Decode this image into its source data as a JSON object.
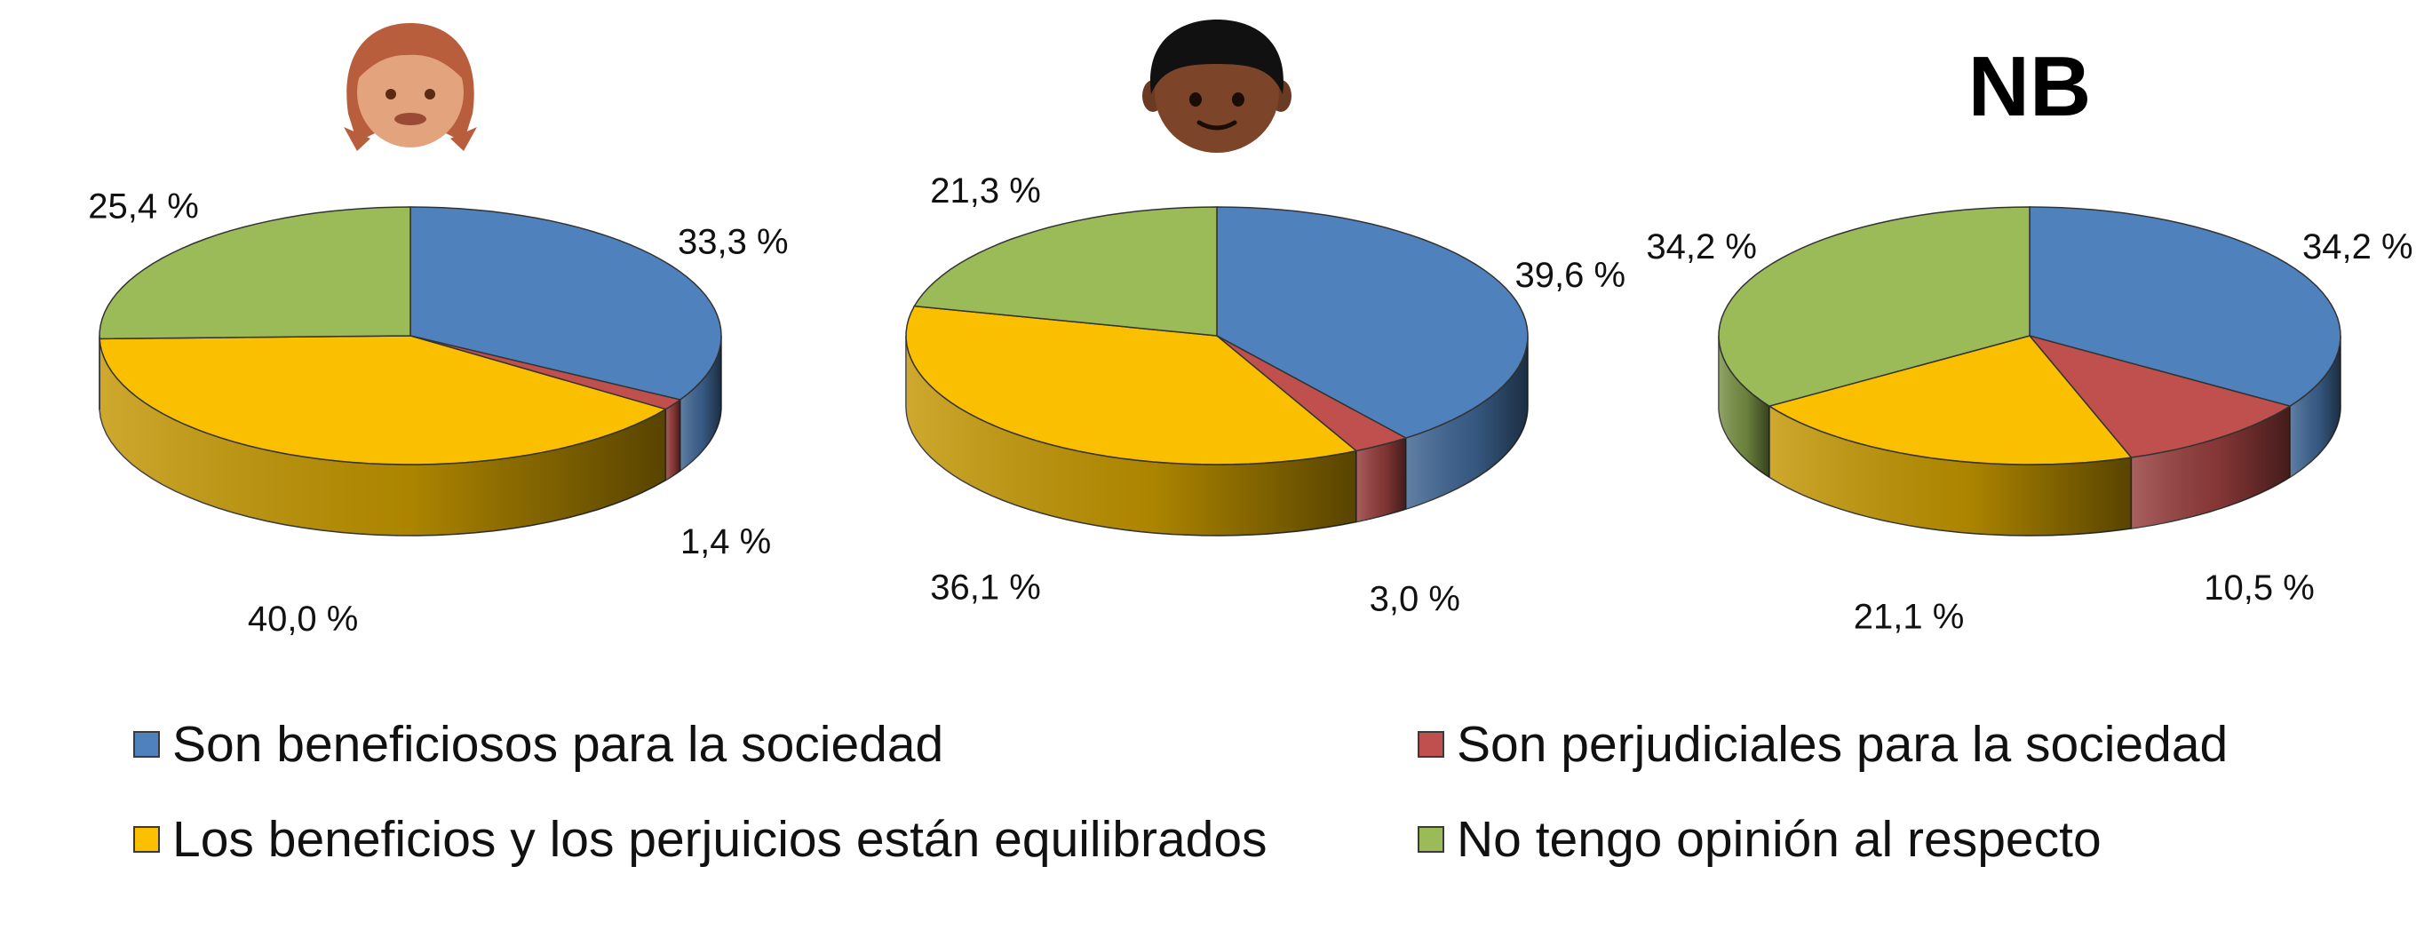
{
  "colors": {
    "beneficial": "#4f81bd",
    "harmful": "#c0504d",
    "balanced": "#fac000",
    "no_opinion": "#9bbb59"
  },
  "chart_data": [
    {
      "type": "pie",
      "header_icon": "girl-face-icon",
      "header_text": "",
      "categories": [
        "Son beneficiosos para la sociedad",
        "Son perjudiciales para la sociedad",
        "Los beneficios y los perjuicios están equilibrados",
        "No tengo opinión al respecto"
      ],
      "values": [
        33.3,
        1.4,
        40.0,
        25.4
      ],
      "labels": [
        "33,3 %",
        "1,4 %",
        "40,0 %",
        "25,4 %"
      ]
    },
    {
      "type": "pie",
      "header_icon": "boy-face-icon",
      "header_text": "",
      "categories": [
        "Son beneficiosos para la sociedad",
        "Son perjudiciales para la sociedad",
        "Los beneficios y los perjuicios están equilibrados",
        "No tengo opinión al respecto"
      ],
      "values": [
        39.6,
        3.0,
        36.1,
        21.3
      ],
      "labels": [
        "39,6 %",
        "3,0 %",
        "36,1 %",
        "21,3 %"
      ]
    },
    {
      "type": "pie",
      "header_icon": "",
      "header_text": "NB",
      "categories": [
        "Son beneficiosos para la sociedad",
        "Son perjudiciales para la sociedad",
        "Los beneficios y los perjuicios están equilibrados",
        "No tengo opinión al respecto"
      ],
      "values": [
        34.2,
        10.5,
        21.1,
        34.2
      ],
      "labels": [
        "34,2 %",
        "10,5 %",
        "21,1 %",
        "34,2 %"
      ]
    }
  ],
  "legend": {
    "items": [
      {
        "label": "Son beneficiosos para la sociedad",
        "color": "#4f81bd"
      },
      {
        "label": "Son perjudiciales para la sociedad",
        "color": "#c0504d"
      },
      {
        "label": "Los beneficios y los perjuicios están equilibrados",
        "color": "#fac000"
      },
      {
        "label": "No tengo opinión al respecto",
        "color": "#9bbb59"
      }
    ]
  }
}
